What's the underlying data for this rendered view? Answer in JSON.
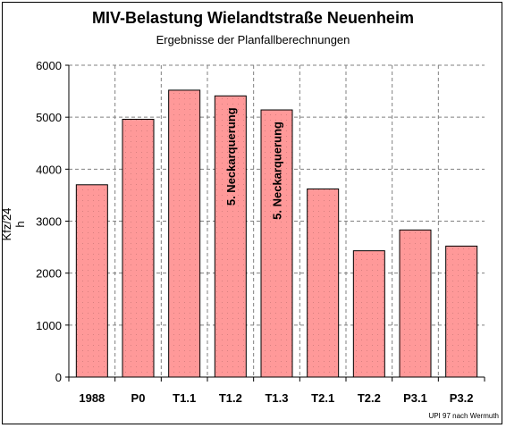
{
  "chart_data": {
    "type": "bar",
    "title": "MIV-Belastung Wielandtstraße Neuenheim",
    "subtitle": "Ergebnisse der Planfallberechnungen",
    "ylabel": "Kfz/24 h",
    "xlabel": "",
    "ylim": [
      0,
      6000
    ],
    "yticks": [
      0,
      1000,
      2000,
      3000,
      4000,
      5000,
      6000
    ],
    "grid": true,
    "categories": [
      "1988",
      "P0",
      "T1.1",
      "T1.2",
      "T1.3",
      "T2.1",
      "T2.2",
      "P3.1",
      "P3.2"
    ],
    "values": [
      3700,
      4960,
      5520,
      5410,
      5140,
      3620,
      2430,
      2830,
      2520
    ],
    "annotations": [
      {
        "category": "T1.2",
        "text": "5. Neckarquerung"
      },
      {
        "category": "T1.3",
        "text": "5. Neckarquerung"
      }
    ],
    "bar_color": "#ff9999",
    "credit": "UPI 97 nach Wermuth"
  }
}
